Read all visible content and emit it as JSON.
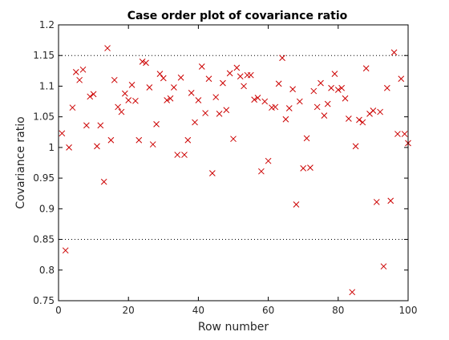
{
  "chart_data": {
    "type": "scatter",
    "title": "Case order plot of covariance ratio",
    "xlabel": "Row number",
    "ylabel": "Covariance ratio",
    "xlim": [
      0,
      100
    ],
    "ylim": [
      0.75,
      1.2
    ],
    "x_ticks": [
      0,
      20,
      40,
      60,
      80,
      100
    ],
    "y_ticks": [
      0.75,
      0.8,
      0.85,
      0.9,
      0.95,
      1.0,
      1.05,
      1.1,
      1.15,
      1.2
    ],
    "x_tick_labels": [
      "0",
      "20",
      "40",
      "60",
      "80",
      "100"
    ],
    "y_tick_labels": [
      "0.75",
      "0.8",
      "0.85",
      "0.9",
      "0.95",
      "1",
      "1.05",
      "1.1",
      "1.15",
      "1.2"
    ],
    "reference_lines": [
      0.85,
      1.15
    ],
    "marker": "x",
    "marker_color": "#cc0000",
    "reference_line_color": "#000000",
    "grid": false,
    "legend": "none",
    "series": [
      {
        "x": [
          1,
          2,
          3,
          4,
          5,
          6,
          7,
          8,
          9,
          10,
          11,
          12,
          13,
          14,
          15,
          16,
          17,
          18,
          19,
          20,
          21,
          22,
          23,
          24,
          25,
          26,
          27,
          28,
          29,
          30,
          31,
          32,
          33,
          34,
          35,
          36,
          37,
          38,
          39,
          40,
          41,
          42,
          43,
          44,
          45,
          46,
          47,
          48,
          49,
          50,
          51,
          52,
          53,
          54,
          55,
          56,
          57,
          58,
          59,
          60,
          61,
          62,
          63,
          64,
          65,
          66,
          67,
          68,
          69,
          70,
          71,
          72,
          73,
          74,
          75,
          76,
          77,
          78,
          79,
          80,
          81,
          82,
          83,
          84,
          85,
          86,
          87,
          88,
          89,
          90,
          91,
          92,
          93,
          94,
          95,
          96,
          97,
          98,
          99,
          100
        ],
        "y": [
          1.023,
          0.832,
          1.0,
          1.065,
          1.123,
          1.11,
          1.127,
          1.036,
          1.083,
          1.087,
          1.002,
          1.036,
          0.944,
          1.162,
          1.012,
          1.11,
          1.066,
          1.058,
          1.088,
          1.077,
          1.102,
          1.076,
          1.012,
          1.14,
          1.138,
          1.098,
          1.005,
          1.038,
          1.12,
          1.113,
          1.077,
          1.08,
          1.098,
          0.988,
          1.114,
          0.988,
          1.012,
          1.089,
          1.041,
          1.077,
          1.132,
          1.056,
          1.112,
          0.958,
          1.082,
          1.055,
          1.105,
          1.061,
          1.121,
          1.014,
          1.13,
          1.116,
          1.1,
          1.118,
          1.118,
          1.078,
          1.081,
          0.961,
          1.075,
          0.978,
          1.065,
          1.066,
          1.104,
          1.146,
          1.046,
          1.064,
          1.095,
          0.907,
          1.075,
          0.966,
          1.015,
          0.967,
          1.092,
          1.066,
          1.105,
          1.052,
          1.071,
          1.097,
          1.12,
          1.094,
          1.097,
          1.08,
          1.047,
          0.764,
          1.002,
          1.045,
          1.041,
          1.129,
          1.055,
          1.06,
          0.911,
          1.058,
          0.806,
          1.097,
          0.913,
          1.155,
          1.022,
          1.112,
          1.022,
          1.007
        ]
      }
    ]
  }
}
